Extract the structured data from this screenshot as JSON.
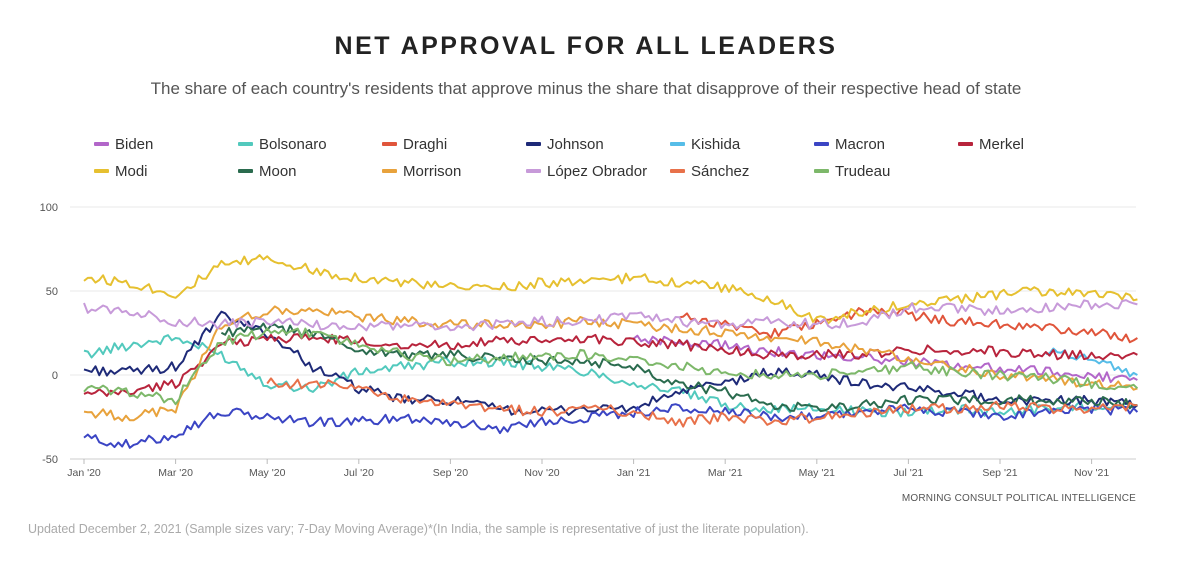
{
  "chart_data": {
    "type": "line",
    "title": "NET APPROVAL FOR ALL LEADERS",
    "subtitle": "The share of each country's residents that approve minus the share that disapprove of their respective head of state",
    "xlabel": "",
    "ylabel": "",
    "ylim": [
      -50,
      100
    ],
    "yticks": [
      -50,
      0,
      50,
      100
    ],
    "x_ticks": [
      "Jan '20",
      "Mar '20",
      "May '20",
      "Jul '20",
      "Sep '20",
      "Nov '20",
      "Jan '21",
      "Mar '21",
      "May '21",
      "Jul '21",
      "Sep '21",
      "Nov '21"
    ],
    "x_dates": [
      "2020-01",
      "2020-02",
      "2020-03",
      "2020-04",
      "2020-05",
      "2020-06",
      "2020-07",
      "2020-08",
      "2020-09",
      "2020-10",
      "2020-11",
      "2020-12",
      "2021-01",
      "2021-02",
      "2021-03",
      "2021-04",
      "2021-05",
      "2021-06",
      "2021-07",
      "2021-08",
      "2021-09",
      "2021-10",
      "2021-11",
      "2021-12"
    ],
    "grid": true,
    "legend_position": "top",
    "series": [
      {
        "name": "Biden",
        "color": "#b266c9",
        "values": [
          null,
          null,
          null,
          null,
          null,
          null,
          null,
          null,
          null,
          null,
          null,
          null,
          22,
          20,
          18,
          14,
          12,
          10,
          8,
          6,
          4,
          2,
          0,
          -3
        ]
      },
      {
        "name": "Bolsonaro",
        "color": "#52c9bd",
        "values": [
          12,
          18,
          22,
          12,
          -5,
          -8,
          2,
          5,
          8,
          8,
          5,
          2,
          -5,
          -10,
          -18,
          -20,
          -20,
          -22,
          -22,
          -20,
          -22,
          -20,
          -18,
          -18
        ]
      },
      {
        "name": "Draghi",
        "color": "#e0553b",
        "values": [
          null,
          null,
          null,
          null,
          null,
          null,
          null,
          null,
          null,
          null,
          null,
          null,
          null,
          35,
          30,
          25,
          30,
          38,
          36,
          32,
          30,
          28,
          25,
          22
        ]
      },
      {
        "name": "Johnson",
        "color": "#1e2a78",
        "values": [
          3,
          2,
          5,
          35,
          25,
          5,
          -8,
          -15,
          -15,
          -20,
          -22,
          -20,
          -20,
          -10,
          -5,
          2,
          0,
          -5,
          -8,
          -10,
          -15,
          -15,
          -15,
          -18
        ]
      },
      {
        "name": "Kishida",
        "color": "#56bde8",
        "values": [
          null,
          null,
          null,
          null,
          null,
          null,
          null,
          null,
          null,
          null,
          null,
          null,
          null,
          null,
          null,
          null,
          null,
          null,
          null,
          null,
          null,
          15,
          10,
          0
        ]
      },
      {
        "name": "Macron",
        "color": "#3b45c4",
        "values": [
          -37,
          -42,
          -35,
          -22,
          -25,
          -28,
          -28,
          -25,
          -28,
          -32,
          -28,
          -25,
          -22,
          -20,
          -22,
          -25,
          -24,
          -22,
          -20,
          -22,
          -24,
          -22,
          -20,
          -22
        ]
      },
      {
        "name": "Merkel",
        "color": "#b8243c",
        "values": [
          -12,
          -10,
          -5,
          18,
          22,
          22,
          20,
          18,
          18,
          20,
          20,
          22,
          20,
          18,
          15,
          12,
          12,
          12,
          15,
          15,
          14,
          12,
          12,
          12
        ]
      },
      {
        "name": "Modi",
        "color": "#e6c030",
        "values": [
          58,
          55,
          48,
          65,
          70,
          62,
          58,
          55,
          52,
          52,
          55,
          55,
          58,
          55,
          52,
          45,
          32,
          38,
          42,
          45,
          48,
          50,
          48,
          45
        ]
      },
      {
        "name": "Moon",
        "color": "#2a6b4e",
        "values": [
          null,
          null,
          null,
          25,
          28,
          25,
          15,
          12,
          12,
          10,
          8,
          8,
          5,
          -5,
          -10,
          -18,
          -20,
          -18,
          -15,
          -15,
          -15,
          -15,
          -15,
          -18
        ]
      },
      {
        "name": "Morrison",
        "color": "#e8a23c",
        "values": [
          -22,
          -25,
          -20,
          30,
          38,
          38,
          35,
          32,
          30,
          30,
          30,
          32,
          30,
          28,
          25,
          22,
          20,
          15,
          10,
          5,
          0,
          -2,
          -5,
          -8
        ]
      },
      {
        "name": "López Obrador",
        "color": "#c79ad9",
        "values": [
          40,
          38,
          32,
          30,
          32,
          30,
          28,
          30,
          28,
          30,
          32,
          32,
          35,
          32,
          30,
          32,
          30,
          32,
          40,
          40,
          38,
          40,
          42,
          42
        ]
      },
      {
        "name": "Sánchez",
        "color": "#e8714a",
        "values": [
          null,
          null,
          null,
          null,
          -5,
          -5,
          -8,
          -15,
          -18,
          -20,
          -22,
          -20,
          -22,
          -28,
          -25,
          -28,
          -25,
          -22,
          -20,
          -20,
          -18,
          -20,
          -20,
          -18
        ]
      },
      {
        "name": "Trudeau",
        "color": "#7db86a",
        "values": [
          -8,
          -10,
          -15,
          20,
          25,
          25,
          18,
          12,
          8,
          10,
          12,
          12,
          10,
          5,
          2,
          0,
          0,
          2,
          5,
          2,
          0,
          -2,
          -5,
          -8
        ]
      }
    ]
  },
  "source": "MORNING CONSULT POLITICAL INTELLIGENCE",
  "footer": "Updated December 2, 2021 (Sample sizes vary; 7-Day Moving Average)*(In India, the sample is representative of just the literate population)."
}
